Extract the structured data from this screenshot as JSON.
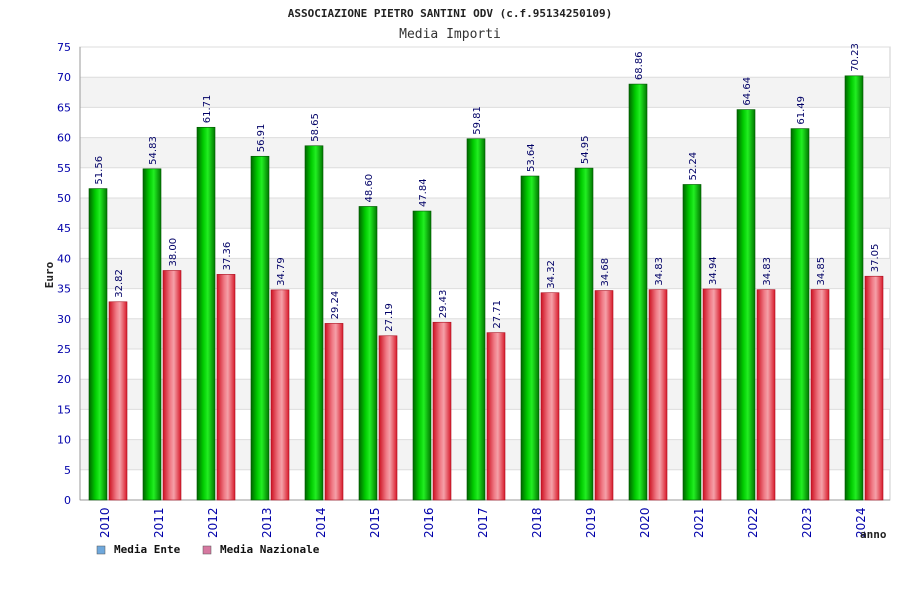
{
  "chart_data": {
    "type": "bar",
    "title": "ASSOCIAZIONE PIETRO SANTINI ODV (c.f.95134250109)",
    "subtitle": "Media Importi",
    "ylabel": "Euro",
    "xlabel": "anno",
    "ylim": [
      0,
      75
    ],
    "yticks": [
      0,
      5,
      10,
      15,
      20,
      25,
      30,
      35,
      40,
      45,
      50,
      55,
      60,
      65,
      70,
      75
    ],
    "grid": true,
    "legend_position": "bottom-left",
    "categories": [
      "2010",
      "2011",
      "2012",
      "2013",
      "2014",
      "2015",
      "2016",
      "2017",
      "2018",
      "2019",
      "2020",
      "2021",
      "2022",
      "2023",
      "2024"
    ],
    "series": [
      {
        "name": "Media Ente",
        "color": "#00bb00",
        "legend_color": "#6fa8dc",
        "values": [
          51.56,
          54.83,
          61.71,
          56.91,
          58.65,
          48.6,
          47.84,
          59.81,
          53.64,
          54.95,
          68.86,
          52.24,
          64.64,
          61.49,
          70.23
        ],
        "labels": [
          "51.56",
          "54.83",
          "61.71",
          "56.91",
          "58.65",
          "48.60",
          "47.84",
          "59.81",
          "53.64",
          "54.95",
          "68.86",
          "52.24",
          "64.64",
          "61.49",
          "70.23"
        ]
      },
      {
        "name": "Media Nazionale",
        "color": "#e23a4a",
        "legend_color": "#d678a0",
        "values": [
          32.82,
          38.0,
          37.36,
          34.79,
          29.24,
          27.19,
          29.43,
          27.71,
          34.32,
          34.68,
          34.83,
          34.94,
          34.83,
          34.85,
          37.05
        ],
        "labels": [
          "32.82",
          "38.00",
          "37.36",
          "34.79",
          "29.24",
          "27.19",
          "29.43",
          "27.71",
          "34.32",
          "34.68",
          "34.83",
          "34.94",
          "34.83",
          "34.85",
          "37.05"
        ]
      }
    ]
  }
}
